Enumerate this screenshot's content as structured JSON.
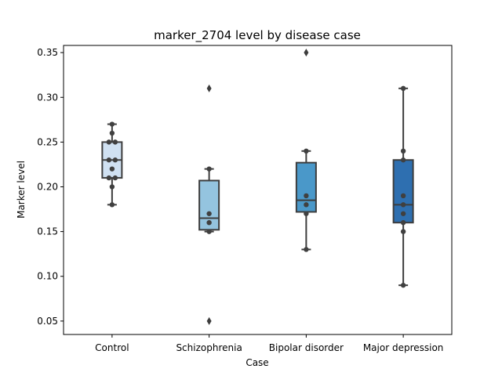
{
  "chart_data": {
    "type": "box",
    "title": "marker_2704 level by disease case",
    "xlabel": "Case",
    "ylabel": "Marker level",
    "ylim": [
      0.035,
      0.358
    ],
    "yticks": [
      0.05,
      0.1,
      0.15,
      0.2,
      0.25,
      0.3,
      0.35
    ],
    "ytick_labels": [
      "0.05",
      "0.10",
      "0.15",
      "0.20",
      "0.25",
      "0.30",
      "0.35"
    ],
    "grid": false,
    "categories": [
      "Control",
      "Schizophrenia",
      "Bipolar disorder",
      "Major depression"
    ],
    "box_colors": [
      "#d0e1f2",
      "#94c4df",
      "#4a98c9",
      "#2e6fb0"
    ],
    "boxes": [
      {
        "category": "Control",
        "whisker_low": 0.18,
        "q1": 0.21,
        "median": 0.23,
        "q3": 0.25,
        "whisker_high": 0.27,
        "outliers": [],
        "points": [
          0.27,
          0.26,
          0.25,
          0.25,
          0.23,
          0.23,
          0.22,
          0.21,
          0.21,
          0.2,
          0.18
        ]
      },
      {
        "category": "Schizophrenia",
        "whisker_low": 0.15,
        "q1": 0.152,
        "median": 0.165,
        "q3": 0.207,
        "whisker_high": 0.22,
        "outliers": [
          0.31,
          0.05
        ],
        "points": [
          0.22,
          0.17,
          0.16,
          0.15
        ]
      },
      {
        "category": "Bipolar disorder",
        "whisker_low": 0.13,
        "q1": 0.172,
        "median": 0.185,
        "q3": 0.227,
        "whisker_high": 0.24,
        "outliers": [
          0.35
        ],
        "points": [
          0.24,
          0.19,
          0.18,
          0.17,
          0.13
        ]
      },
      {
        "category": "Major depression",
        "whisker_low": 0.09,
        "q1": 0.16,
        "median": 0.18,
        "q3": 0.23,
        "whisker_high": 0.31,
        "outliers": [],
        "points": [
          0.31,
          0.24,
          0.23,
          0.19,
          0.18,
          0.17,
          0.16,
          0.15,
          0.09
        ]
      }
    ]
  }
}
